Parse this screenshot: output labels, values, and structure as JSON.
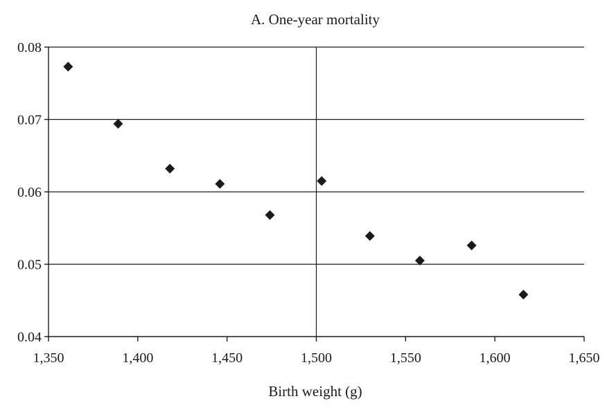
{
  "chart_data": {
    "type": "scatter",
    "title": "A. One-year mortality",
    "xlabel": "Birth weight (g)",
    "ylabel": "",
    "xlim": [
      1350,
      1650
    ],
    "ylim": [
      0.04,
      0.08
    ],
    "x_ticks": [
      1350,
      1400,
      1450,
      1500,
      1550,
      1600,
      1650
    ],
    "x_tick_labels": [
      "1,350",
      "1,400",
      "1,450",
      "1,500",
      "1,550",
      "1,600",
      "1,650"
    ],
    "y_ticks": [
      0.04,
      0.05,
      0.06,
      0.07,
      0.08
    ],
    "y_tick_labels": [
      "0.04",
      "0.05",
      "0.06",
      "0.07",
      "0.08"
    ],
    "vertical_reference_line": 1500,
    "grid": "horizontal",
    "marker": "diamond",
    "series": [
      {
        "x": [
          1361,
          1389,
          1418,
          1446,
          1474,
          1503,
          1530,
          1558,
          1587,
          1616
        ],
        "y": [
          0.0773,
          0.0694,
          0.0632,
          0.0611,
          0.0568,
          0.0615,
          0.0539,
          0.0505,
          0.0526,
          0.0458
        ]
      }
    ]
  },
  "colors": {
    "marker": "#1a1a1a",
    "axis": "#1a1a1a",
    "grid": "#1a1a1a",
    "background": "#ffffff"
  }
}
